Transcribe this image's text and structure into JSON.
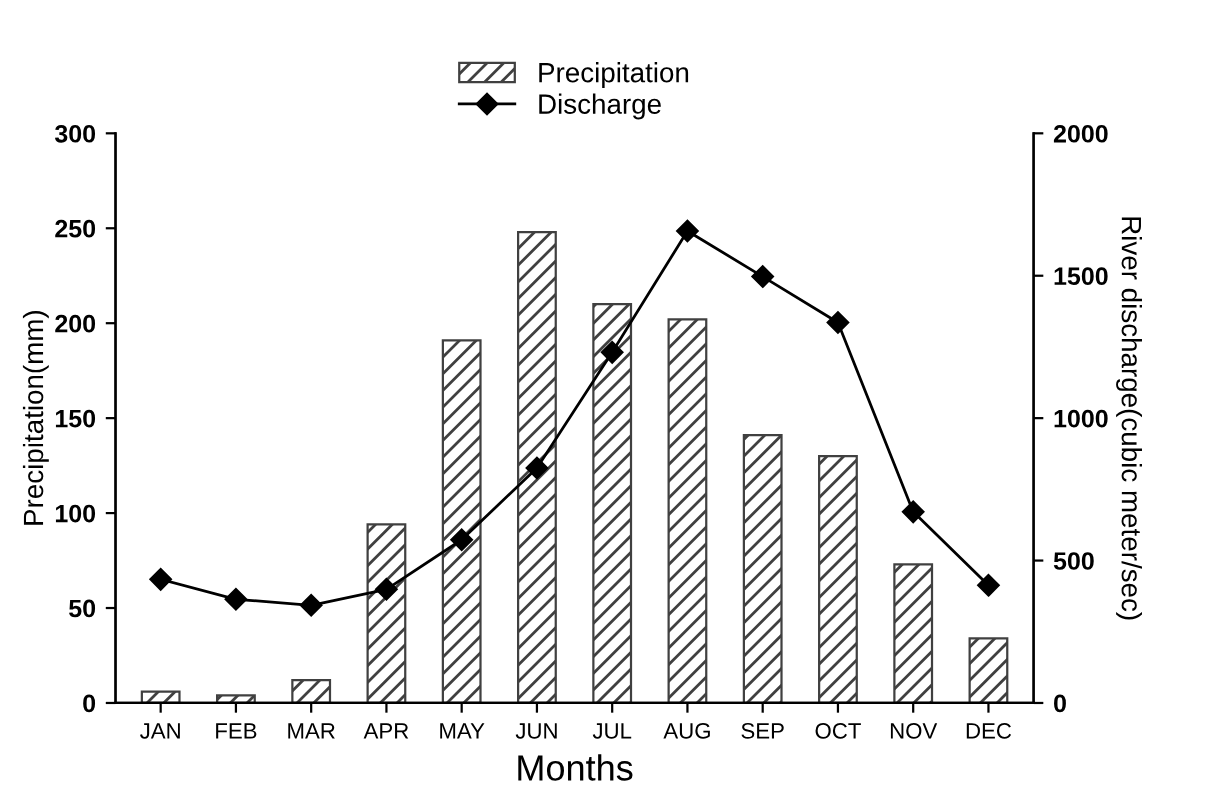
{
  "chart_data": {
    "type": "bar",
    "xlabel": "Months",
    "ylabel": "Precipitation(mm)",
    "y2label": "River discharge(cubic meter/sec)",
    "categories": [
      "JAN",
      "FEB",
      "MAR",
      "APR",
      "MAY",
      "JUN",
      "JUL",
      "AUG",
      "SEP",
      "OCT",
      "NOV",
      "DEC"
    ],
    "series": [
      {
        "name": "Precipitation",
        "color": "#404040",
        "values": [
          6,
          4,
          12,
          94,
          191,
          248,
          210,
          202,
          141,
          130,
          73,
          34
        ]
      },
      {
        "name": "Discharge",
        "type": "line",
        "axis": "y2",
        "color": "#000000",
        "marker": "diamond",
        "values": [
          434,
          364,
          343,
          399,
          573,
          825,
          1231,
          1657,
          1497,
          1336,
          671,
          413
        ]
      }
    ],
    "ylim": [
      0,
      300
    ],
    "yticks": [
      0,
      50,
      100,
      150,
      200,
      250,
      300
    ],
    "y2lim": [
      0,
      2000
    ],
    "y2ticks": [
      0,
      500,
      1000,
      1500,
      2000
    ],
    "grid": false,
    "legend": "top"
  }
}
